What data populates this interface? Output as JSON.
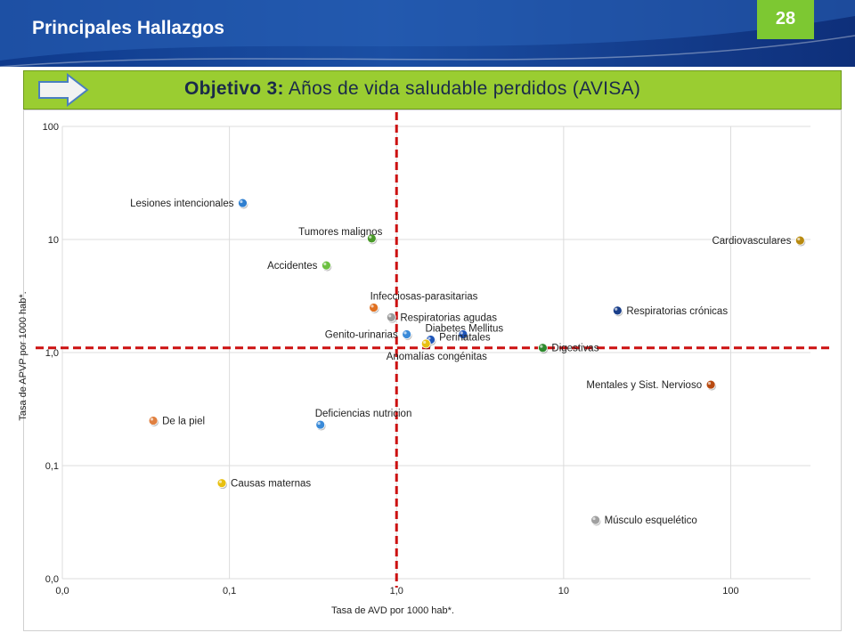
{
  "header": {
    "title": "Principales Hallazgos",
    "page_number": "28"
  },
  "objective": {
    "prefix": "Objetivo 3:",
    "text": "Años de vida saludable perdidos (AVISA)"
  },
  "colors": {
    "header_blue": "#1b4fa4",
    "accent_green": "#7dc832",
    "objective_green": "#9acd31",
    "reference_line": "#cc1111"
  },
  "icons": {
    "objective_arrow": "arrow-right-icon"
  },
  "chart_data": {
    "type": "scatter",
    "xlabel": "Tasa de AVD por 1000 hab*.",
    "ylabel": "Tasa de APVP por 1000 hab*.",
    "x_scale": "log",
    "y_scale": "log",
    "xlim": [
      0.01,
      300
    ],
    "ylim": [
      0.01,
      100
    ],
    "x_ticks": [
      {
        "value": 0.01,
        "label": "0,0"
      },
      {
        "value": 0.1,
        "label": "0,1"
      },
      {
        "value": 1,
        "label": "1,0"
      },
      {
        "value": 10,
        "label": "10"
      },
      {
        "value": 100,
        "label": "100"
      }
    ],
    "y_ticks": [
      {
        "value": 0.01,
        "label": "0,0"
      },
      {
        "value": 0.1,
        "label": "0,1"
      },
      {
        "value": 1,
        "label": "1,0"
      },
      {
        "value": 10,
        "label": "10"
      },
      {
        "value": 100,
        "label": "100"
      }
    ],
    "grid": true,
    "reference_lines": {
      "x": 1.0,
      "y": 1.1
    },
    "points": [
      {
        "label": "Lesiones intencionales",
        "x": 0.12,
        "y": 21,
        "color": "#2f7fd0",
        "label_side": "left"
      },
      {
        "label": "Tumores malignos",
        "x": 0.71,
        "y": 10.2,
        "color": "#4a9a2a",
        "label_side": "above-left"
      },
      {
        "label": "Accidentes",
        "x": 0.38,
        "y": 5.9,
        "color": "#6cc040",
        "label_side": "left"
      },
      {
        "label": "Infecciosas-parasitarias",
        "x": 0.73,
        "y": 2.5,
        "color": "#e07020",
        "label_side": "above-right"
      },
      {
        "label": "Respiratorias agudas",
        "x": 0.93,
        "y": 2.05,
        "color": "#9a9a9a",
        "label_side": "right"
      },
      {
        "label": "Genito-urinarias",
        "x": 1.15,
        "y": 1.45,
        "color": "#3a8ad8",
        "label_side": "left"
      },
      {
        "label": "Diabetes Mellitus",
        "x": 1.6,
        "y": 1.3,
        "color": "#1f55b8",
        "label_side": "above"
      },
      {
        "label": "Perinatales",
        "x": 2.5,
        "y": 1.45,
        "color": "#1f55b8",
        "label_side": "below-right"
      },
      {
        "label": "Anomalías congénitas",
        "x": 1.5,
        "y": 1.2,
        "color": "#e8c010",
        "label_side": "below"
      },
      {
        "label": "Digestivas",
        "x": 7.5,
        "y": 1.1,
        "color": "#2e8a2e",
        "label_side": "right"
      },
      {
        "label": "Respiratorias crónicas",
        "x": 21,
        "y": 2.35,
        "color": "#1a3f8a",
        "label_side": "right"
      },
      {
        "label": "Cardiovasculares",
        "x": 260,
        "y": 9.8,
        "color": "#b88a10",
        "label_side": "left"
      },
      {
        "label": "Mentales y Sist. Nervioso",
        "x": 76,
        "y": 0.52,
        "color": "#b84a10",
        "label_side": "left"
      },
      {
        "label": "De la piel",
        "x": 0.035,
        "y": 0.25,
        "color": "#e08040",
        "label_side": "right"
      },
      {
        "label": "Deficiencias nutricion",
        "x": 0.35,
        "y": 0.23,
        "color": "#3a8ad8",
        "label_side": "above"
      },
      {
        "label": "Causas maternas",
        "x": 0.09,
        "y": 0.07,
        "color": "#e8c010",
        "label_side": "right"
      },
      {
        "label": "Músculo esquelético",
        "x": 15.5,
        "y": 0.033,
        "color": "#a0a0a0",
        "label_side": "right"
      }
    ]
  }
}
